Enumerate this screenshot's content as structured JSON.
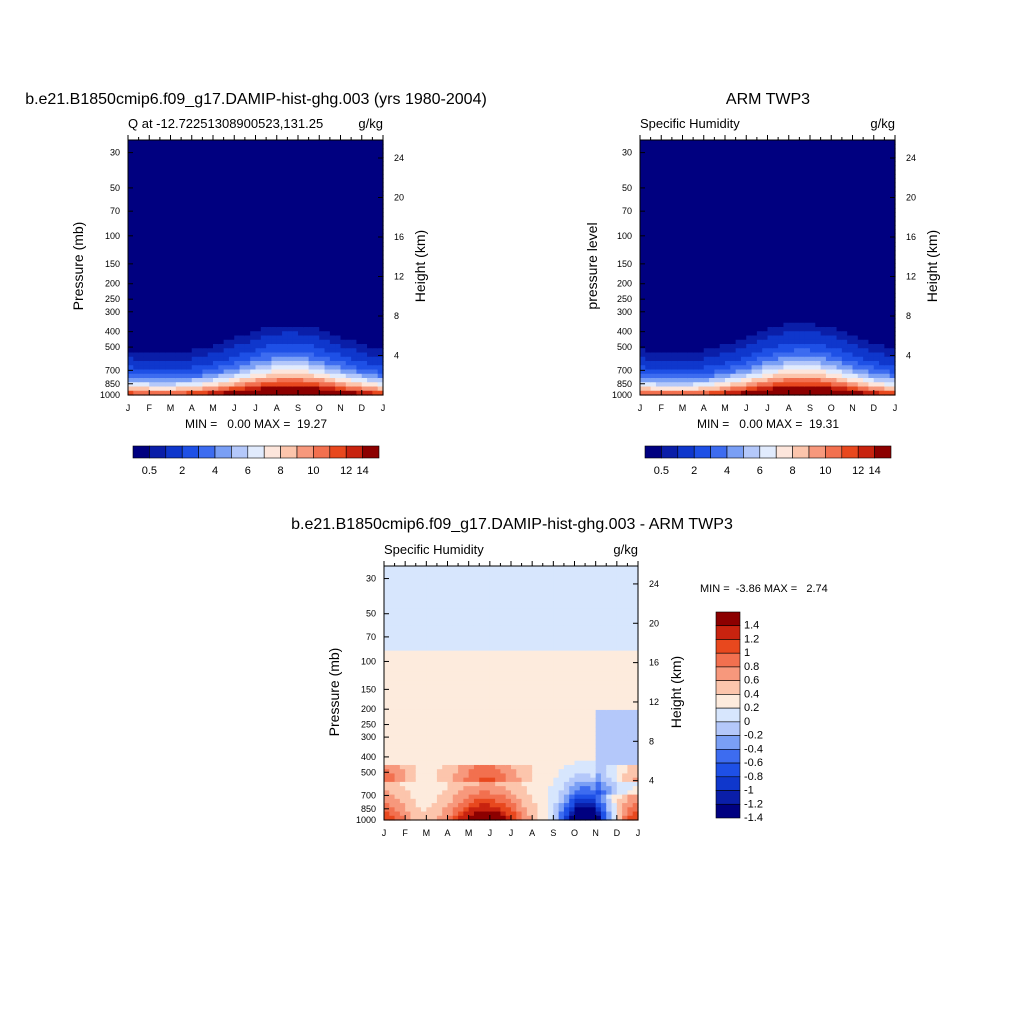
{
  "colors": {
    "palette12": [
      "#000080",
      "#0a1ea8",
      "#0f37cc",
      "#1e50e6",
      "#3d6cf0",
      "#7a9ff5",
      "#b4c8fa",
      "#e1ebfd",
      "#fde6dc",
      "#fcc5ac",
      "#f7987c",
      "#f2704f",
      "#e8481e",
      "#c8230f",
      "#8c0000"
    ],
    "palette_diff": [
      "#000080",
      "#0a1ea8",
      "#0f37cc",
      "#1e50e6",
      "#3d6cf0",
      "#7a9ff5",
      "#b4c8fa",
      "#d7e6fd",
      "#fdebdd",
      "#fcc5ac",
      "#f7987c",
      "#f2704f",
      "#e8481e",
      "#c8230f",
      "#8c0000"
    ]
  },
  "chart_data": [
    {
      "type": "heatmap",
      "title": "b.e21.B1850cmip6.f09_g17.DAMIP-hist-ghg.003 (yrs 1980-2004)",
      "subtitle_left": "Q at -12.72251308900523,131.25",
      "subtitle_right": "g/kg",
      "ylabel": "Pressure (mb)",
      "ylabel_right": "Height (km)",
      "x_ticks": [
        "J",
        "F",
        "M",
        "A",
        "M",
        "J",
        "J",
        "A",
        "S",
        "O",
        "N",
        "D",
        "J"
      ],
      "y_ticks": [
        30,
        50,
        70,
        100,
        150,
        200,
        250,
        300,
        400,
        500,
        700,
        850,
        1000
      ],
      "y_right_ticks": [
        24,
        20,
        16,
        12,
        8,
        4
      ],
      "ylim": [
        1000,
        25
      ],
      "stats": "MIN =   0.00 MAX =  19.27",
      "colorbar_labels": [
        "0.5",
        "2",
        "4",
        "6",
        "8",
        "10",
        "12",
        "14"
      ],
      "grid": false
    },
    {
      "type": "heatmap",
      "title": "ARM TWP3",
      "subtitle_left": "Specific Humidity",
      "subtitle_right": "g/kg",
      "ylabel": "pressure level",
      "ylabel_right": "Height (km)",
      "x_ticks": [
        "J",
        "F",
        "M",
        "A",
        "M",
        "J",
        "J",
        "A",
        "S",
        "O",
        "N",
        "D",
        "J"
      ],
      "y_ticks": [
        30,
        50,
        70,
        100,
        150,
        200,
        250,
        300,
        400,
        500,
        700,
        850,
        1000
      ],
      "y_right_ticks": [
        24,
        20,
        16,
        12,
        8,
        4
      ],
      "ylim": [
        1000,
        25
      ],
      "stats": "MIN =   0.00 MAX =  19.31",
      "colorbar_labels": [
        "0.5",
        "2",
        "4",
        "6",
        "8",
        "10",
        "12",
        "14"
      ],
      "grid": false
    },
    {
      "type": "heatmap",
      "title": "b.e21.B1850cmip6.f09_g17.DAMIP-hist-ghg.003 - ARM TWP3",
      "subtitle_left": "Specific Humidity",
      "subtitle_right": "g/kg",
      "ylabel": "Pressure (mb)",
      "ylabel_right": "Height (km)",
      "x_ticks": [
        "J",
        "F",
        "M",
        "A",
        "M",
        "J",
        "J",
        "A",
        "S",
        "O",
        "N",
        "D",
        "J"
      ],
      "y_ticks": [
        30,
        50,
        70,
        100,
        150,
        200,
        250,
        300,
        400,
        500,
        700,
        850,
        1000
      ],
      "y_right_ticks": [
        24,
        20,
        16,
        12,
        8,
        4
      ],
      "ylim": [
        1000,
        25
      ],
      "stats": "MIN =  -3.86 MAX =   2.74",
      "colorbar_labels": [
        "1.4",
        "1.2",
        "1",
        "0.8",
        "0.6",
        "0.4",
        "0.2",
        "0",
        "-0.2",
        "-0.4",
        "-0.6",
        "-0.8",
        "-1",
        "-1.2",
        "-1.4"
      ],
      "grid": false
    }
  ]
}
